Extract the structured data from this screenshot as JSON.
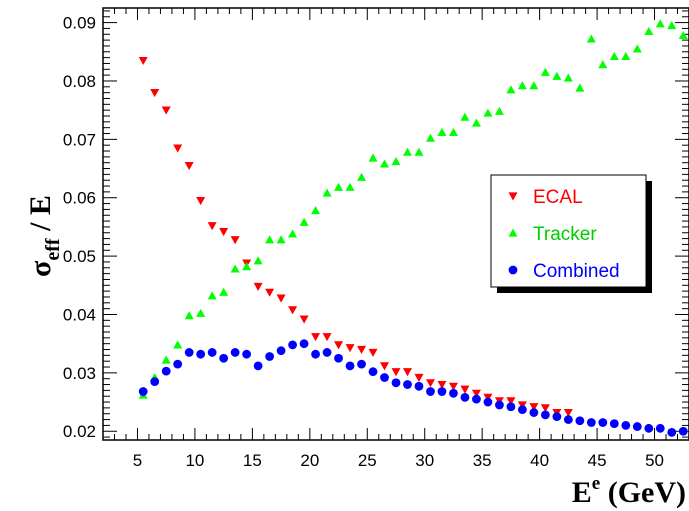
{
  "chart_data": {
    "type": "scatter",
    "title": "",
    "xlabel": {
      "base": "E",
      "sup": "e",
      "rest": " (GeV)"
    },
    "ylabel": {
      "base": "σ",
      "sub": "eff",
      "rest": " / E"
    },
    "xlim": [
      2,
      53
    ],
    "ylim": [
      0.0185,
      0.0925
    ],
    "x_ticks": [
      5,
      10,
      15,
      20,
      25,
      30,
      35,
      40,
      45,
      50
    ],
    "x_tick_labels": [
      "5",
      "10",
      "15",
      "20",
      "25",
      "30",
      "35",
      "40",
      "45",
      "50"
    ],
    "y_ticks": [
      0.02,
      0.03,
      0.04,
      0.05,
      0.06,
      0.07,
      0.08,
      0.09
    ],
    "y_tick_labels": [
      "0.02",
      "0.03",
      "0.04",
      "0.05",
      "0.06",
      "0.07",
      "0.08",
      "0.09"
    ],
    "grid": false,
    "legend_position": "right",
    "series": [
      {
        "name": "ECAL",
        "marker": "triangle-down",
        "color": "#ff0000",
        "x": [
          5.5,
          6.5,
          7.5,
          8.5,
          9.5,
          10.5,
          11.5,
          12.5,
          13.5,
          14.5,
          15.5,
          16.5,
          17.5,
          18.5,
          19.5,
          20.5,
          21.5,
          22.5,
          23.5,
          24.5,
          25.5,
          26.5,
          27.5,
          28.5,
          29.5,
          30.5,
          31.5,
          32.5,
          33.5,
          34.5,
          35.5,
          36.5,
          37.5,
          38.5,
          39.5,
          40.5,
          41.5,
          42.5
        ],
        "y": [
          0.0835,
          0.078,
          0.075,
          0.0685,
          0.0655,
          0.0595,
          0.0552,
          0.0542,
          0.0528,
          0.0488,
          0.0448,
          0.0438,
          0.0428,
          0.0408,
          0.0392,
          0.0362,
          0.0362,
          0.0348,
          0.0343,
          0.034,
          0.0335,
          0.0312,
          0.0302,
          0.0302,
          0.0292,
          0.0283,
          0.028,
          0.0277,
          0.0272,
          0.0265,
          0.0258,
          0.0252,
          0.0252,
          0.0245,
          0.0242,
          0.024,
          0.0232,
          0.0232
        ]
      },
      {
        "name": "Tracker",
        "marker": "triangle-up",
        "color": "#00ff00",
        "x": [
          5.5,
          6.5,
          7.5,
          8.5,
          9.5,
          10.5,
          11.5,
          12.5,
          13.5,
          14.5,
          15.5,
          16.5,
          17.5,
          18.5,
          19.5,
          20.5,
          21.5,
          22.5,
          23.5,
          24.5,
          25.5,
          26.5,
          27.5,
          28.5,
          29.5,
          30.5,
          31.5,
          32.5,
          33.5,
          34.5,
          35.5,
          36.5,
          37.5,
          38.5,
          39.5,
          40.5,
          41.5,
          42.5,
          43.5,
          44.5,
          45.5,
          46.5,
          47.5,
          48.5,
          49.5,
          50.5,
          51.5,
          52.5
        ],
        "y": [
          0.0262,
          0.0292,
          0.0322,
          0.0348,
          0.0398,
          0.0402,
          0.0432,
          0.0438,
          0.0478,
          0.0482,
          0.0492,
          0.0528,
          0.0528,
          0.0538,
          0.0558,
          0.0578,
          0.0608,
          0.0618,
          0.0618,
          0.0635,
          0.0668,
          0.0658,
          0.0662,
          0.0678,
          0.0678,
          0.0702,
          0.0712,
          0.0712,
          0.0738,
          0.0728,
          0.0745,
          0.0748,
          0.0785,
          0.0792,
          0.0792,
          0.0815,
          0.0808,
          0.0805,
          0.0788,
          0.0872,
          0.0828,
          0.0842,
          0.0842,
          0.0855,
          0.0885,
          0.0898,
          0.0895,
          0.0878
        ]
      },
      {
        "name": "Combined",
        "marker": "circle",
        "color": "#0000ff",
        "x": [
          5.5,
          6.5,
          7.5,
          8.5,
          9.5,
          10.5,
          11.5,
          12.5,
          13.5,
          14.5,
          15.5,
          16.5,
          17.5,
          18.5,
          19.5,
          20.5,
          21.5,
          22.5,
          23.5,
          24.5,
          25.5,
          26.5,
          27.5,
          28.5,
          29.5,
          30.5,
          31.5,
          32.5,
          33.5,
          34.5,
          35.5,
          36.5,
          37.5,
          38.5,
          39.5,
          40.5,
          41.5,
          42.5,
          43.5,
          44.5,
          45.5,
          46.5,
          47.5,
          48.5,
          49.5,
          50.5,
          51.5,
          52.5
        ],
        "y": [
          0.0268,
          0.0285,
          0.0303,
          0.0315,
          0.0335,
          0.0332,
          0.0335,
          0.0325,
          0.0335,
          0.0332,
          0.0312,
          0.0328,
          0.0338,
          0.0348,
          0.035,
          0.0332,
          0.0335,
          0.0325,
          0.0312,
          0.0315,
          0.0302,
          0.0292,
          0.0283,
          0.028,
          0.0277,
          0.0268,
          0.0268,
          0.0265,
          0.0258,
          0.0255,
          0.025,
          0.0245,
          0.0242,
          0.0237,
          0.0232,
          0.0228,
          0.0225,
          0.022,
          0.0218,
          0.0215,
          0.0215,
          0.0213,
          0.021,
          0.0208,
          0.0205,
          0.0205,
          0.0198,
          0.02
        ]
      }
    ]
  }
}
